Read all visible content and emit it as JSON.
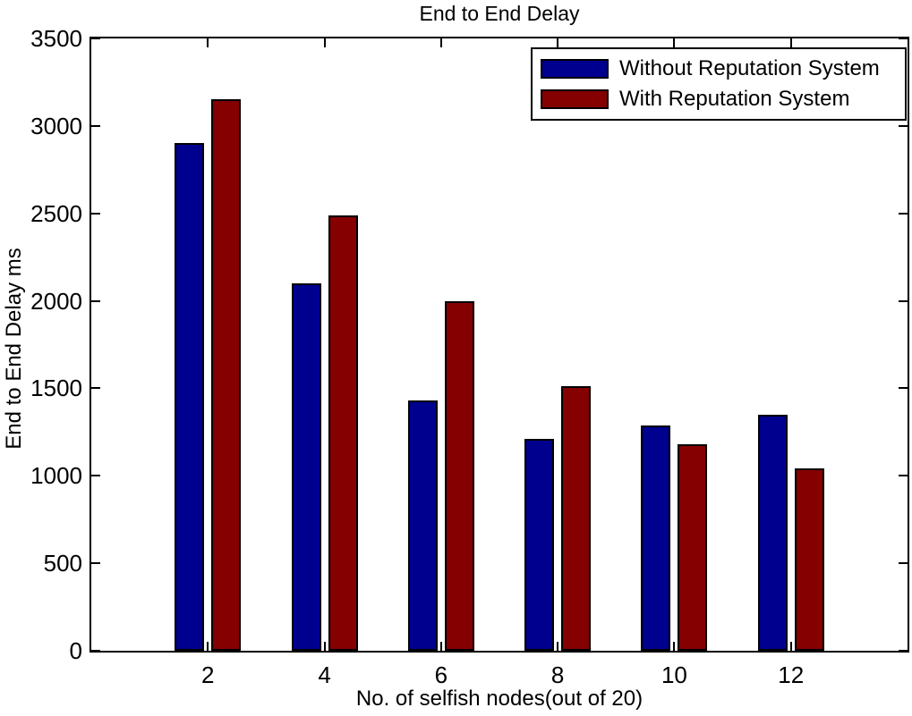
{
  "chart_data": {
    "type": "bar",
    "title": "End to End Delay",
    "xlabel": "No. of selfish nodes(out of 20)",
    "ylabel": "End to End Delay ms",
    "categories": [
      2,
      4,
      6,
      8,
      10,
      12
    ],
    "series": [
      {
        "name": "Without Reputation System",
        "color": "#00008F",
        "values": [
          2900,
          2100,
          1430,
          1210,
          1290,
          1350
        ]
      },
      {
        "name": "With Reputation System",
        "color": "#850000",
        "values": [
          3150,
          2490,
          2000,
          1510,
          1180,
          1040
        ]
      }
    ],
    "ylim": [
      0,
      3500
    ],
    "yticks": [
      0,
      500,
      1000,
      1500,
      2000,
      2500,
      3000,
      3500
    ],
    "xlim": [
      0,
      14
    ],
    "grid": false,
    "legend_position": "top-right",
    "bar_border_color": "#000000",
    "axis_color": "#000000",
    "background": "#FFFFFF"
  }
}
